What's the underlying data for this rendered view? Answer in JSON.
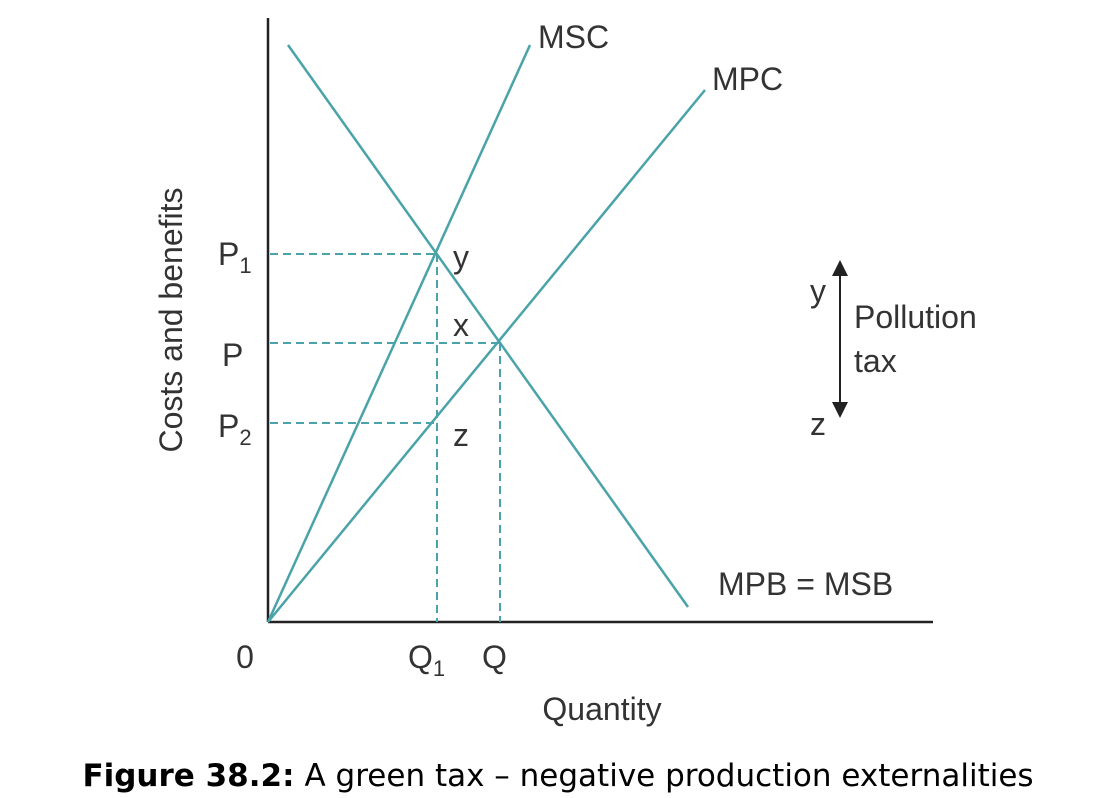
{
  "axes": {
    "y_label": "Costs and benefits",
    "x_label": "Quantity",
    "origin": "0"
  },
  "curves": {
    "msc": "MSC",
    "mpc": "MPC",
    "demand": "MPB = MSB"
  },
  "price_labels": [
    {
      "main": "P",
      "sub": "1"
    },
    {
      "main": "P"
    },
    {
      "main": "P",
      "sub": "2"
    }
  ],
  "quantity_labels": [
    {
      "main": "Q",
      "sub": "1"
    },
    {
      "main": "Q"
    }
  ],
  "points": [
    "y",
    "x",
    "z"
  ],
  "tax": {
    "top": "y",
    "bottom": "z",
    "label_lines": [
      "Pollution",
      "tax"
    ]
  },
  "caption": {
    "number": "Figure 38.2:",
    "text": "A green tax – negative production externalities"
  }
}
